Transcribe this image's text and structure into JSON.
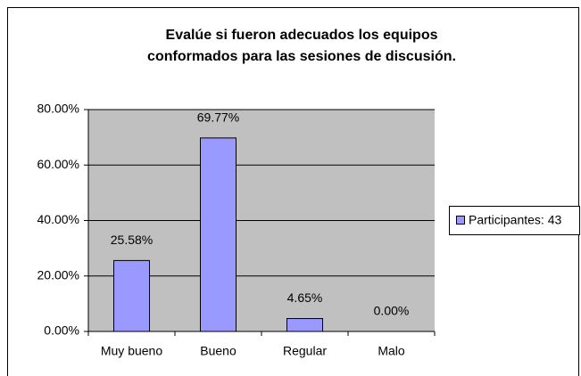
{
  "chart_data": {
    "type": "bar",
    "title": [
      "Evalúe si fueron adecuados los equipos",
      "conformados para las sesiones de discusión."
    ],
    "categories": [
      "Muy bueno",
      "Bueno",
      "Regular",
      "Malo"
    ],
    "series": [
      {
        "name": "Participantes: 43",
        "color": "#9999ff",
        "values": [
          25.58,
          69.77,
          4.65,
          0
        ],
        "value_labels": [
          "25.58%",
          "69.77%",
          "4.65%",
          "0.00%"
        ]
      }
    ],
    "ylim": [
      0,
      80
    ],
    "yticks": [
      {
        "value": 0,
        "label": "0.00%"
      },
      {
        "value": 20,
        "label": "20.00%"
      },
      {
        "value": 40,
        "label": "40.00%"
      },
      {
        "value": 60,
        "label": "60.00%"
      },
      {
        "value": 80,
        "label": "80.00%"
      }
    ],
    "grid": true,
    "legend": "right"
  }
}
